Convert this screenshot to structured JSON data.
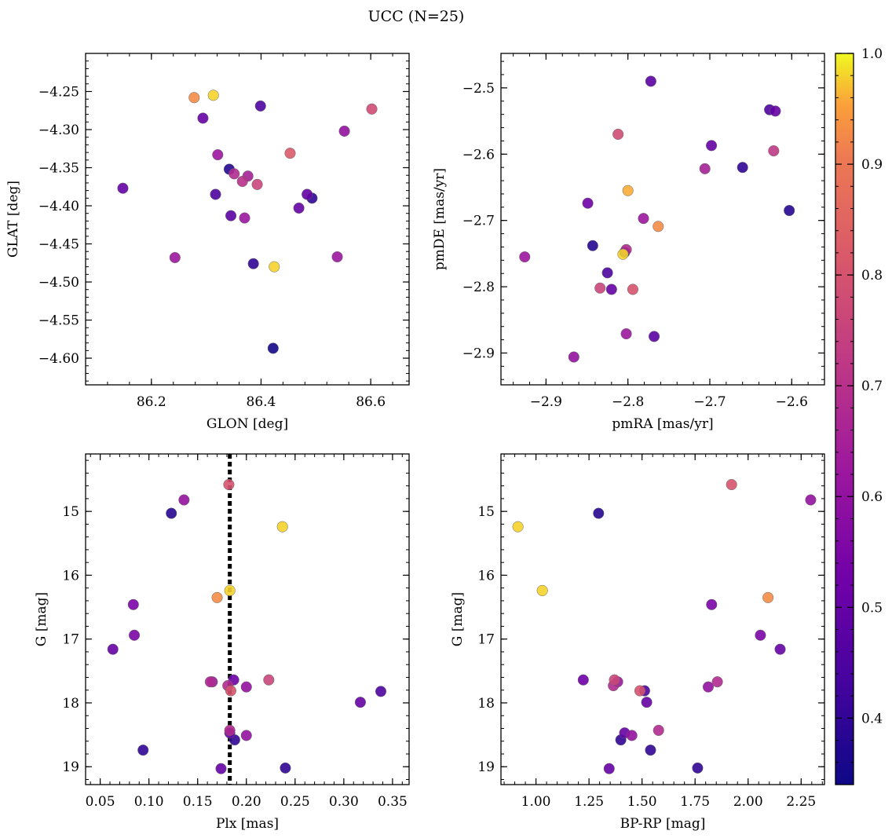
{
  "figure": {
    "title": "UCC (N=25)"
  },
  "colorbar": {
    "vmin": 0.34,
    "vmax": 1.0,
    "ticks": [
      0.4,
      0.5,
      0.6,
      0.7,
      0.8,
      0.9,
      1.0
    ],
    "tick_labels": [
      "0.4",
      "0.5",
      "0.6",
      "0.7",
      "0.8",
      "0.9",
      "1.0"
    ],
    "colormap": "plasma"
  },
  "chart_data": [
    {
      "type": "scatter",
      "xlabel": "GLON [deg]",
      "ylabel": "GLAT [deg]",
      "xlim": [
        86.08,
        86.67
      ],
      "ylim": [
        -4.635,
        -4.2
      ],
      "invert_y": false,
      "xticks": [
        86.2,
        86.4,
        86.6
      ],
      "xtick_labels": [
        "86.2",
        "86.4",
        "86.6"
      ],
      "yticks": [
        -4.25,
        -4.3,
        -4.35,
        -4.4,
        -4.45,
        -4.5,
        -4.55,
        -4.6
      ],
      "ytick_labels": [
        "−4.25",
        "−4.30",
        "−4.35",
        "−4.40",
        "−4.45",
        "−4.50",
        "−4.55",
        "−4.60"
      ],
      "points": [
        {
          "x": 86.278,
          "y": -4.258,
          "c": 0.93
        },
        {
          "x": 86.313,
          "y": -4.255,
          "c": 0.98
        },
        {
          "x": 86.294,
          "y": -4.285,
          "c": 0.5
        },
        {
          "x": 86.399,
          "y": -4.269,
          "c": 0.45
        },
        {
          "x": 86.602,
          "y": -4.273,
          "c": 0.78
        },
        {
          "x": 86.552,
          "y": -4.302,
          "c": 0.6
        },
        {
          "x": 86.453,
          "y": -4.331,
          "c": 0.82
        },
        {
          "x": 86.321,
          "y": -4.333,
          "c": 0.62
        },
        {
          "x": 86.342,
          "y": -4.352,
          "c": 0.38
        },
        {
          "x": 86.351,
          "y": -4.358,
          "c": 0.68
        },
        {
          "x": 86.376,
          "y": -4.361,
          "c": 0.65
        },
        {
          "x": 86.366,
          "y": -4.368,
          "c": 0.7
        },
        {
          "x": 86.393,
          "y": -4.372,
          "c": 0.76
        },
        {
          "x": 86.148,
          "y": -4.377,
          "c": 0.5
        },
        {
          "x": 86.317,
          "y": -4.385,
          "c": 0.45
        },
        {
          "x": 86.484,
          "y": -4.385,
          "c": 0.5
        },
        {
          "x": 86.493,
          "y": -4.39,
          "c": 0.4
        },
        {
          "x": 86.469,
          "y": -4.403,
          "c": 0.5
        },
        {
          "x": 86.345,
          "y": -4.413,
          "c": 0.48
        },
        {
          "x": 86.37,
          "y": -4.416,
          "c": 0.62
        },
        {
          "x": 86.243,
          "y": -4.468,
          "c": 0.62
        },
        {
          "x": 86.539,
          "y": -4.467,
          "c": 0.62
        },
        {
          "x": 86.386,
          "y": -4.476,
          "c": 0.4
        },
        {
          "x": 86.424,
          "y": -4.48,
          "c": 0.98
        },
        {
          "x": 86.422,
          "y": -4.587,
          "c": 0.35
        }
      ]
    },
    {
      "type": "scatter",
      "xlabel": "pmRA [mas/yr]",
      "ylabel": "pmDE [mas/yr]",
      "xlim": [
        -2.955,
        -2.56
      ],
      "ylim": [
        -2.948,
        -2.448
      ],
      "invert_y": false,
      "xticks": [
        -2.9,
        -2.8,
        -2.7,
        -2.6
      ],
      "xtick_labels": [
        "−2.9",
        "−2.8",
        "−2.7",
        "−2.6"
      ],
      "yticks": [
        -2.5,
        -2.6,
        -2.7,
        -2.8,
        -2.9
      ],
      "ytick_labels": [
        "−2.5",
        "−2.6",
        "−2.7",
        "−2.8",
        "−2.9"
      ],
      "points": [
        {
          "x": -2.772,
          "y": -2.49,
          "c": 0.48
        },
        {
          "x": -2.627,
          "y": -2.533,
          "c": 0.45
        },
        {
          "x": -2.62,
          "y": -2.535,
          "c": 0.5
        },
        {
          "x": -2.812,
          "y": -2.57,
          "c": 0.78
        },
        {
          "x": -2.698,
          "y": -2.587,
          "c": 0.5
        },
        {
          "x": -2.622,
          "y": -2.595,
          "c": 0.72
        },
        {
          "x": -2.66,
          "y": -2.62,
          "c": 0.4
        },
        {
          "x": -2.706,
          "y": -2.622,
          "c": 0.65
        },
        {
          "x": -2.8,
          "y": -2.655,
          "c": 0.96
        },
        {
          "x": -2.603,
          "y": -2.685,
          "c": 0.38
        },
        {
          "x": -2.849,
          "y": -2.674,
          "c": 0.52
        },
        {
          "x": -2.781,
          "y": -2.697,
          "c": 0.62
        },
        {
          "x": -2.763,
          "y": -2.709,
          "c": 0.93
        },
        {
          "x": -2.843,
          "y": -2.738,
          "c": 0.38
        },
        {
          "x": -2.804,
          "y": -2.748,
          "c": 0.35
        },
        {
          "x": -2.802,
          "y": -2.744,
          "c": 0.68
        },
        {
          "x": -2.806,
          "y": -2.751,
          "c": 0.98
        },
        {
          "x": -2.926,
          "y": -2.755,
          "c": 0.62
        },
        {
          "x": -2.825,
          "y": -2.779,
          "c": 0.45
        },
        {
          "x": -2.834,
          "y": -2.802,
          "c": 0.76
        },
        {
          "x": -2.82,
          "y": -2.804,
          "c": 0.5
        },
        {
          "x": -2.794,
          "y": -2.804,
          "c": 0.8
        },
        {
          "x": -2.802,
          "y": -2.871,
          "c": 0.62
        },
        {
          "x": -2.768,
          "y": -2.875,
          "c": 0.48
        },
        {
          "x": -2.866,
          "y": -2.906,
          "c": 0.6
        }
      ]
    },
    {
      "type": "scatter",
      "xlabel": "Plx [mas]",
      "ylabel": "G [mag]",
      "xlim": [
        0.035,
        0.367
      ],
      "ylim": [
        14.1,
        19.28
      ],
      "invert_y": true,
      "vline": 0.183,
      "xticks": [
        0.05,
        0.1,
        0.15,
        0.2,
        0.25,
        0.3,
        0.35
      ],
      "xtick_labels": [
        "0.05",
        "0.10",
        "0.15",
        "0.20",
        "0.25",
        "0.30",
        "0.35"
      ],
      "yticks": [
        15,
        16,
        17,
        18,
        19
      ],
      "ytick_labels": [
        "15",
        "16",
        "17",
        "18",
        "19"
      ],
      "points": [
        {
          "x": 0.182,
          "y": 14.58,
          "c": 0.8
        },
        {
          "x": 0.136,
          "y": 14.82,
          "c": 0.6
        },
        {
          "x": 0.123,
          "y": 15.03,
          "c": 0.38
        },
        {
          "x": 0.237,
          "y": 15.24,
          "c": 0.98
        },
        {
          "x": 0.183,
          "y": 16.24,
          "c": 0.98
        },
        {
          "x": 0.17,
          "y": 16.35,
          "c": 0.93
        },
        {
          "x": 0.084,
          "y": 16.46,
          "c": 0.55
        },
        {
          "x": 0.085,
          "y": 16.94,
          "c": 0.55
        },
        {
          "x": 0.063,
          "y": 17.16,
          "c": 0.5
        },
        {
          "x": 0.163,
          "y": 17.67,
          "c": 0.68
        },
        {
          "x": 0.165,
          "y": 17.67,
          "c": 0.62
        },
        {
          "x": 0.187,
          "y": 17.64,
          "c": 0.52
        },
        {
          "x": 0.223,
          "y": 17.64,
          "c": 0.76
        },
        {
          "x": 0.181,
          "y": 17.73,
          "c": 0.68
        },
        {
          "x": 0.2,
          "y": 17.75,
          "c": 0.6
        },
        {
          "x": 0.184,
          "y": 17.81,
          "c": 0.8
        },
        {
          "x": 0.317,
          "y": 17.99,
          "c": 0.5
        },
        {
          "x": 0.338,
          "y": 17.82,
          "c": 0.45
        },
        {
          "x": 0.183,
          "y": 18.43,
          "c": 0.68
        },
        {
          "x": 0.183,
          "y": 18.47,
          "c": 0.5
        },
        {
          "x": 0.2,
          "y": 18.51,
          "c": 0.6
        },
        {
          "x": 0.188,
          "y": 18.58,
          "c": 0.4
        },
        {
          "x": 0.094,
          "y": 18.74,
          "c": 0.4
        },
        {
          "x": 0.174,
          "y": 19.03,
          "c": 0.5
        },
        {
          "x": 0.24,
          "y": 19.02,
          "c": 0.4
        }
      ]
    },
    {
      "type": "scatter",
      "xlabel": "BP-RP [mag]",
      "ylabel": "G [mag]",
      "xlim": [
        0.835,
        2.36
      ],
      "ylim": [
        14.1,
        19.28
      ],
      "invert_y": true,
      "xticks": [
        1.0,
        1.25,
        1.5,
        1.75,
        2.0,
        2.25
      ],
      "xtick_labels": [
        "1.00",
        "1.25",
        "1.50",
        "1.75",
        "2.00",
        "2.25"
      ],
      "yticks": [
        15,
        16,
        17,
        18,
        19
      ],
      "ytick_labels": [
        "15",
        "16",
        "17",
        "18",
        "19"
      ],
      "points": [
        {
          "x": 1.922,
          "y": 14.58,
          "c": 0.8
        },
        {
          "x": 2.295,
          "y": 14.82,
          "c": 0.6
        },
        {
          "x": 1.295,
          "y": 15.03,
          "c": 0.38
        },
        {
          "x": 0.915,
          "y": 15.24,
          "c": 0.98
        },
        {
          "x": 1.03,
          "y": 16.24,
          "c": 0.98
        },
        {
          "x": 2.094,
          "y": 16.35,
          "c": 0.93
        },
        {
          "x": 1.828,
          "y": 16.46,
          "c": 0.55
        },
        {
          "x": 2.058,
          "y": 16.94,
          "c": 0.55
        },
        {
          "x": 2.151,
          "y": 17.16,
          "c": 0.5
        },
        {
          "x": 1.223,
          "y": 17.64,
          "c": 0.52
        },
        {
          "x": 1.37,
          "y": 17.64,
          "c": 0.76
        },
        {
          "x": 1.385,
          "y": 17.67,
          "c": 0.62
        },
        {
          "x": 1.365,
          "y": 17.73,
          "c": 0.68
        },
        {
          "x": 1.855,
          "y": 17.67,
          "c": 0.68
        },
        {
          "x": 1.812,
          "y": 17.75,
          "c": 0.6
        },
        {
          "x": 1.512,
          "y": 17.81,
          "c": 0.45
        },
        {
          "x": 1.49,
          "y": 17.81,
          "c": 0.8
        },
        {
          "x": 1.522,
          "y": 17.99,
          "c": 0.5
        },
        {
          "x": 1.578,
          "y": 18.43,
          "c": 0.68
        },
        {
          "x": 1.418,
          "y": 18.47,
          "c": 0.5
        },
        {
          "x": 1.452,
          "y": 18.51,
          "c": 0.6
        },
        {
          "x": 1.4,
          "y": 18.58,
          "c": 0.4
        },
        {
          "x": 1.54,
          "y": 18.74,
          "c": 0.4
        },
        {
          "x": 1.345,
          "y": 19.03,
          "c": 0.5
        },
        {
          "x": 1.762,
          "y": 19.02,
          "c": 0.4
        }
      ]
    }
  ]
}
